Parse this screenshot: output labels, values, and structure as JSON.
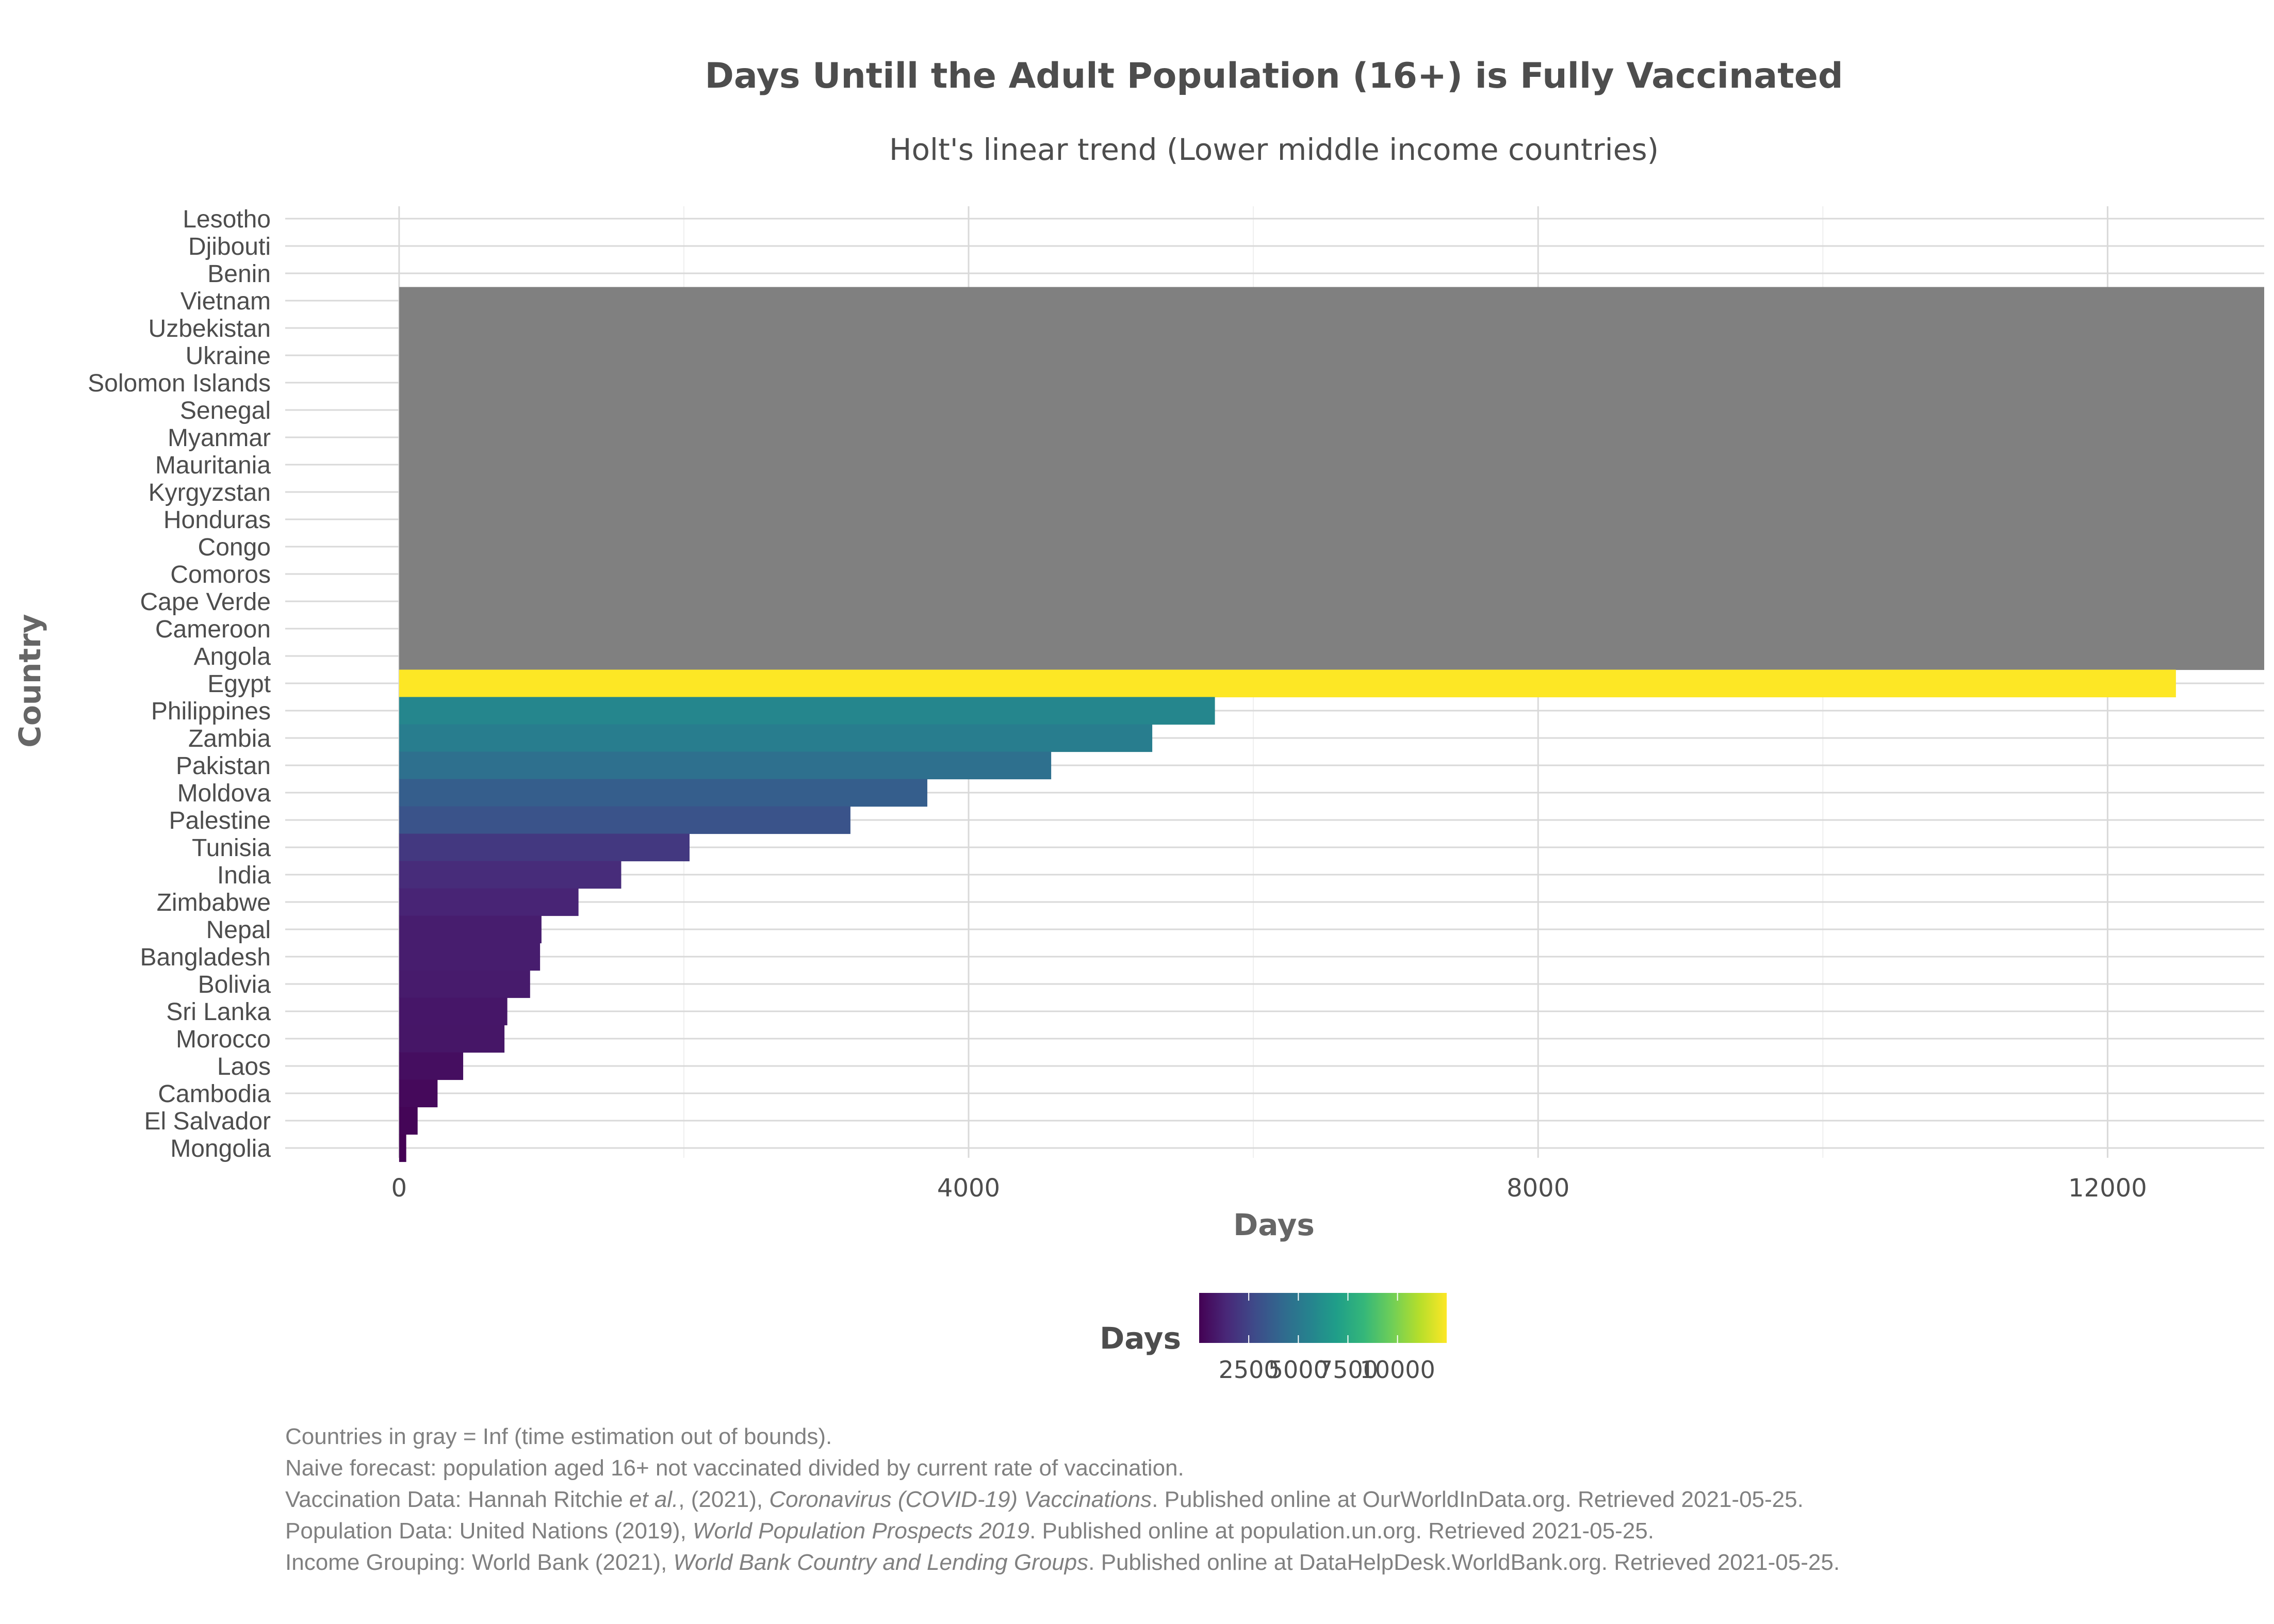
{
  "colors": {
    "inf_gray": "#808080",
    "grid_major": "#d9d9d9",
    "grid_minor": "#efefef",
    "viridis": [
      "#440154",
      "#482878",
      "#3e4a89",
      "#31688e",
      "#26828e",
      "#1f9e89",
      "#35b779",
      "#6ece58",
      "#b5de2b",
      "#fde725"
    ]
  },
  "chart_data": {
    "type": "bar",
    "orientation": "horizontal",
    "title": "Days Untill the Adult Population (16+) is Fully Vaccinated",
    "subtitle": "Holt's linear trend (Lower middle income countries)",
    "xlabel": "Days",
    "ylabel": "Country",
    "xlim": [
      -800,
      13100
    ],
    "xticks": [
      0,
      4000,
      8000,
      12000
    ],
    "xtick_labels": [
      "0",
      "4000",
      "8000",
      "12000"
    ],
    "grid": true,
    "categories": [
      "Lesotho",
      "Djibouti",
      "Benin",
      "Vietnam",
      "Uzbekistan",
      "Ukraine",
      "Solomon Islands",
      "Senegal",
      "Myanmar",
      "Mauritania",
      "Kyrgyzstan",
      "Honduras",
      "Congo",
      "Comoros",
      "Cape Verde",
      "Cameroon",
      "Angola",
      "Egypt",
      "Philippines",
      "Zambia",
      "Pakistan",
      "Moldova",
      "Palestine",
      "Tunisia",
      "India",
      "Zimbabwe",
      "Nepal",
      "Bangladesh",
      "Bolivia",
      "Sri Lanka",
      "Morocco",
      "Laos",
      "Cambodia",
      "El Salvador",
      "Mongolia"
    ],
    "values": [
      null,
      null,
      null,
      "Inf",
      "Inf",
      "Inf",
      "Inf",
      "Inf",
      "Inf",
      "Inf",
      "Inf",
      "Inf",
      "Inf",
      "Inf",
      "Inf",
      "Inf",
      "Inf",
      12480,
      5730,
      5290,
      4580,
      3710,
      3170,
      2040,
      1560,
      1260,
      1000,
      990,
      920,
      760,
      740,
      450,
      270,
      130,
      50
    ],
    "legend": {
      "title": "Days",
      "position": "bottom",
      "range": [
        0,
        12480
      ],
      "ticks": [
        2500,
        5000,
        7500,
        10000
      ],
      "tick_labels": [
        "2500",
        "5000",
        "7500",
        "10000"
      ]
    },
    "caption": [
      [
        {
          "t": "Countries in gray = Inf (time estimation out of bounds)."
        }
      ],
      [
        {
          "t": "Naive forecast: population aged 16+ not vaccinated divided by current rate of vaccination."
        }
      ],
      [
        {
          "t": "Vaccination Data: Hannah Ritchie "
        },
        {
          "t": "et al.",
          "i": true
        },
        {
          "t": ", (2021), "
        },
        {
          "t": "Coronavirus (COVID-19) Vaccinations",
          "i": true
        },
        {
          "t": ". Published online at OurWorldInData.org. Retrieved 2021-05-25."
        }
      ],
      [
        {
          "t": "Population Data: United Nations (2019), "
        },
        {
          "t": "World Population Prospects 2019",
          "i": true
        },
        {
          "t": ". Published online at population.un.org. Retrieved 2021-05-25."
        }
      ],
      [
        {
          "t": "Income Grouping: World Bank (2021), "
        },
        {
          "t": "World Bank Country and Lending Groups",
          "i": true
        },
        {
          "t": ". Published online at DataHelpDesk.WorldBank.org. Retrieved 2021-05-25."
        }
      ]
    ]
  }
}
